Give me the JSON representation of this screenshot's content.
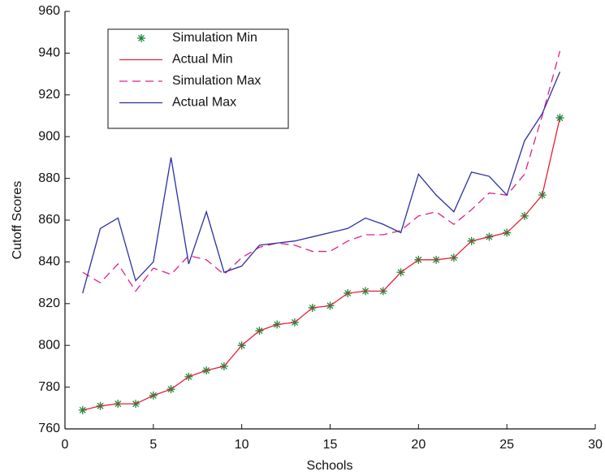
{
  "chart_data": {
    "type": "line",
    "xlabel": "Schools",
    "ylabel": "Cutoff Scores",
    "x": [
      1,
      2,
      3,
      4,
      5,
      6,
      7,
      8,
      9,
      10,
      11,
      12,
      13,
      14,
      15,
      16,
      17,
      18,
      19,
      20,
      21,
      22,
      23,
      24,
      25,
      26,
      27,
      28
    ],
    "xlim": [
      0,
      30
    ],
    "xticks": [
      0,
      5,
      10,
      15,
      20,
      25,
      30
    ],
    "ylim": [
      760,
      960
    ],
    "yticks": [
      760,
      780,
      800,
      820,
      840,
      860,
      880,
      900,
      920,
      940,
      960
    ],
    "legend": "upper left",
    "series": [
      {
        "name": "Simulation Min",
        "color": "#1a8a3a",
        "line_style": "none",
        "marker": "asterisk",
        "values": [
          769,
          771,
          772,
          772,
          776,
          779,
          785,
          788,
          790,
          800,
          807,
          810,
          811,
          818,
          819,
          825,
          826,
          826,
          835,
          841,
          841,
          842,
          850,
          852,
          854,
          862,
          872,
          909
        ]
      },
      {
        "name": "Actual Min",
        "color": "#e8213a",
        "line_style": "solid",
        "marker": "none",
        "values": [
          769,
          771,
          772,
          772,
          776,
          779,
          785,
          788,
          790,
          800,
          807,
          810,
          811,
          818,
          819,
          825,
          826,
          826,
          835,
          841,
          841,
          842,
          850,
          852,
          854,
          862,
          872,
          909
        ]
      },
      {
        "name": "Simulation Max",
        "color": "#e0208a",
        "line_style": "dashed",
        "marker": "none",
        "values": [
          835,
          830,
          839,
          826,
          837,
          834,
          843,
          841,
          834,
          842,
          847,
          849,
          848,
          845,
          845,
          850,
          853,
          853,
          855,
          862,
          864,
          858,
          865,
          873,
          872,
          882,
          910,
          941
        ]
      },
      {
        "name": "Actual Max",
        "color": "#2a2fa0",
        "line_style": "solid",
        "marker": "none",
        "values": [
          825,
          856,
          861,
          831,
          840,
          890,
          839,
          864,
          835,
          838,
          848,
          849,
          850,
          852,
          854,
          856,
          861,
          858,
          854,
          882,
          872,
          864,
          883,
          881,
          872,
          898,
          911,
          931
        ]
      }
    ]
  }
}
